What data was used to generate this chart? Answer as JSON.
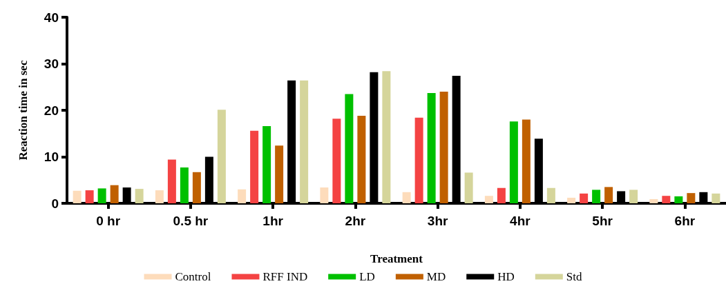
{
  "chart_data": {
    "type": "bar",
    "xlabel": "Treatment",
    "ylabel": "Reaction time in sec",
    "categories": [
      "0 hr",
      "0.5 hr",
      "1hr",
      "2hr",
      "3hr",
      "4hr",
      "5hr",
      "6hr"
    ],
    "series": [
      {
        "name": "Control",
        "color": "#fddcbb",
        "values": [
          2.7,
          2.8,
          3.0,
          3.4,
          2.4,
          1.6,
          1.2,
          0.9
        ]
      },
      {
        "name": "RFF IND",
        "color": "#f44343",
        "values": [
          2.8,
          9.4,
          15.6,
          18.2,
          18.4,
          3.3,
          2.1,
          1.6
        ]
      },
      {
        "name": "LD",
        "color": "#00c000",
        "values": [
          3.2,
          7.7,
          16.6,
          23.5,
          23.7,
          17.6,
          2.9,
          1.5
        ]
      },
      {
        "name": "MD",
        "color": "#c06000",
        "values": [
          3.9,
          6.7,
          12.4,
          18.8,
          24.0,
          18.0,
          3.5,
          2.2
        ]
      },
      {
        "name": "HD",
        "color": "#000000",
        "values": [
          3.4,
          10.0,
          26.4,
          28.2,
          27.4,
          13.9,
          2.6,
          2.4
        ]
      },
      {
        "name": "Std",
        "color": "#d5d59b",
        "values": [
          3.1,
          20.1,
          26.4,
          28.4,
          6.6,
          3.3,
          2.9,
          2.1
        ]
      }
    ],
    "ylim": [
      0,
      40
    ],
    "yticks": [
      0,
      10,
      20,
      30,
      40
    ],
    "grid": false,
    "legend": "bottom"
  }
}
